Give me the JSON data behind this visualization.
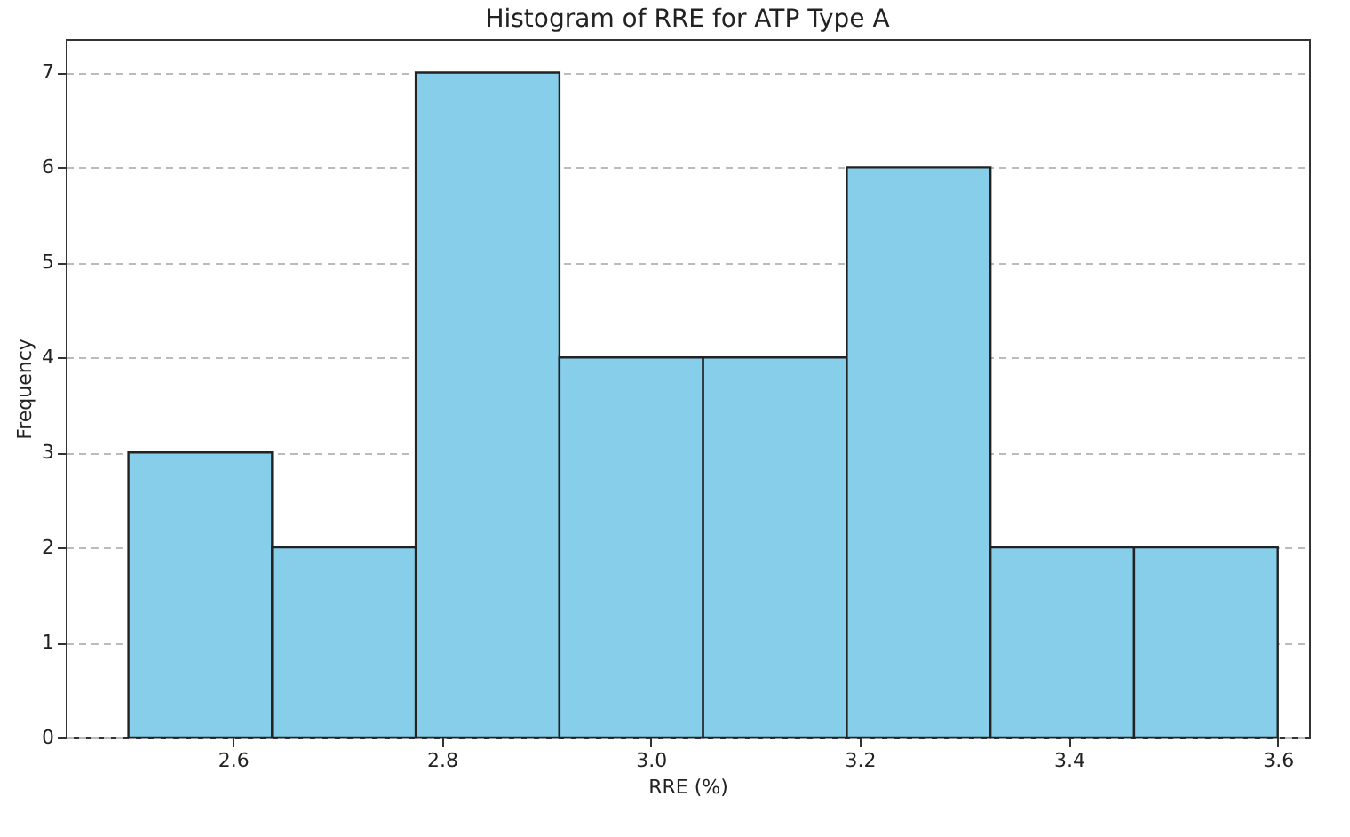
{
  "chart_data": {
    "type": "histogram",
    "title": "Histogram of RRE for ATP Type A",
    "xlabel": "RRE (%)",
    "ylabel": "Frequency",
    "bins": [
      2.5,
      2.6375,
      2.775,
      2.9125,
      3.05,
      3.1875,
      3.325,
      3.4625,
      3.6
    ],
    "values": [
      3,
      2,
      7,
      4,
      4,
      6,
      2,
      2
    ],
    "color": "#87ceeb",
    "xlim": [
      2.44,
      3.63
    ],
    "xticks": [
      2.6,
      2.8,
      {
        "value": 3,
        "label": "3.0"
      },
      3.2,
      3.4,
      3.6
    ],
    "ylim": [
      0,
      7.35
    ],
    "yticks": [
      0,
      1,
      2,
      3,
      4,
      5,
      6,
      7
    ],
    "grid": "y"
  }
}
